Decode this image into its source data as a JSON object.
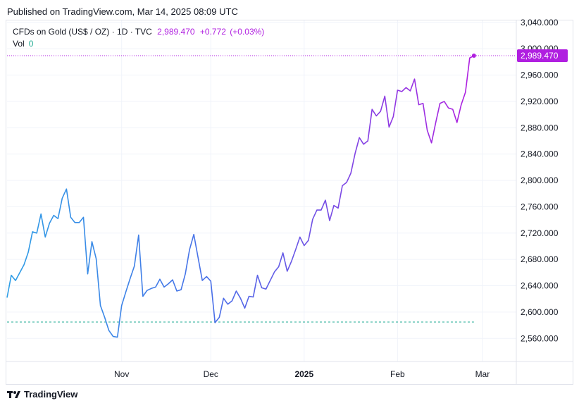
{
  "header": {
    "published": "Published on TradingView.com, Mar 14, 2025 08:09 UTC"
  },
  "legend": {
    "symbol": "CFDs on Gold (US$ / OZ) · 1D · TVC",
    "price": "2,989.470",
    "change": "+0.772",
    "change_pct": "(+0.03%)",
    "vol_label": "Vol",
    "vol_value": "0"
  },
  "footer": {
    "brand": "TradingView"
  },
  "colors": {
    "line_start": "#2e9ee6",
    "line_end": "#b01fe0",
    "price_tag": "#b01fe0",
    "baseline": "#22ab94"
  },
  "chart_data": {
    "type": "line",
    "y_ticks": [
      "3,040.000",
      "3,000.000",
      "2,960.000",
      "2,920.000",
      "2,880.000",
      "2,840.000",
      "2,800.000",
      "2,760.000",
      "2,720.000",
      "2,680.000",
      "2,640.000",
      "2,600.000",
      "2,560.000"
    ],
    "y_tick_values": [
      3040,
      3000,
      2960,
      2920,
      2880,
      2840,
      2800,
      2760,
      2720,
      2680,
      2640,
      2600,
      2560
    ],
    "ylim": [
      2525,
      3043
    ],
    "x_ticks": [
      {
        "label": "Nov",
        "index": 27,
        "bold": false
      },
      {
        "label": "Dec",
        "index": 48,
        "bold": false
      },
      {
        "label": "2025",
        "index": 70,
        "bold": true
      },
      {
        "label": "Feb",
        "index": 92,
        "bold": false
      },
      {
        "label": "Mar",
        "index": 112,
        "bold": false
      }
    ],
    "last_price": 2989.47,
    "last_price_label": "2,989.470",
    "baseline": 2585,
    "values": [
      2622,
      2656,
      2648,
      2660,
      2672,
      2691,
      2722,
      2720,
      2749,
      2714,
      2735,
      2747,
      2742,
      2773,
      2787,
      2744,
      2736,
      2736,
      2744,
      2658,
      2707,
      2681,
      2610,
      2592,
      2572,
      2563,
      2562,
      2610,
      2631,
      2651,
      2670,
      2717,
      2624,
      2633,
      2636,
      2638,
      2650,
      2638,
      2643,
      2649,
      2632,
      2634,
      2658,
      2695,
      2718,
      2683,
      2648,
      2654,
      2647,
      2584,
      2592,
      2621,
      2612,
      2617,
      2632,
      2621,
      2606,
      2624,
      2623,
      2656,
      2637,
      2635,
      2648,
      2661,
      2669,
      2690,
      2662,
      2677,
      2695,
      2714,
      2701,
      2709,
      2741,
      2755,
      2755,
      2770,
      2739,
      2762,
      2758,
      2792,
      2797,
      2811,
      2841,
      2865,
      2855,
      2860,
      2908,
      2898,
      2905,
      2928,
      2881,
      2897,
      2937,
      2935,
      2941,
      2936,
      2954,
      2915,
      2917,
      2876,
      2857,
      2888,
      2917,
      2920,
      2910,
      2908,
      2888,
      2915,
      2934,
      2986,
      2989.47
    ]
  }
}
